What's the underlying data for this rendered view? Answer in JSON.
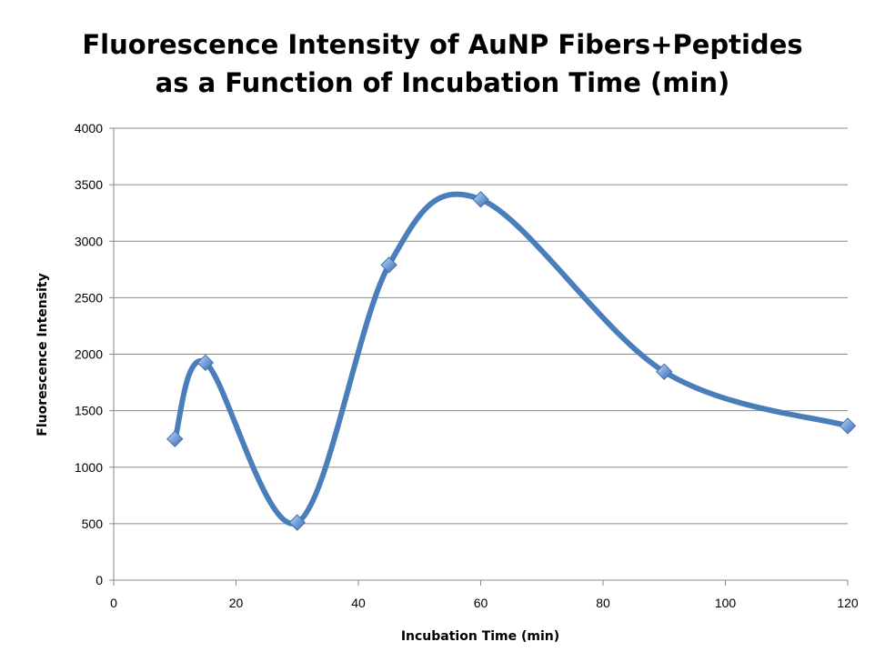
{
  "chart_data": {
    "type": "line",
    "title_lines": [
      "Fluorescence Intensity of AuNP Fibers+Peptides",
      "as a Function of Incubation Time (min)"
    ],
    "xlabel": "Incubation Time (min)",
    "ylabel": "Fluorescence Intensity",
    "xlim": [
      0,
      120
    ],
    "ylim": [
      0,
      4000
    ],
    "x_ticks": [
      0,
      20,
      40,
      60,
      80,
      100,
      120
    ],
    "y_ticks": [
      0,
      500,
      1000,
      1500,
      2000,
      2500,
      3000,
      3500,
      4000
    ],
    "grid": "horizontal",
    "legend": "none",
    "smoothed": true,
    "marker": "diamond",
    "series": [
      {
        "x": [
          10,
          15,
          30,
          45,
          60,
          90,
          120
        ],
        "y": [
          1250,
          1925,
          510,
          2790,
          3370,
          1845,
          1365
        ],
        "color": "#4a7ebb"
      }
    ]
  }
}
